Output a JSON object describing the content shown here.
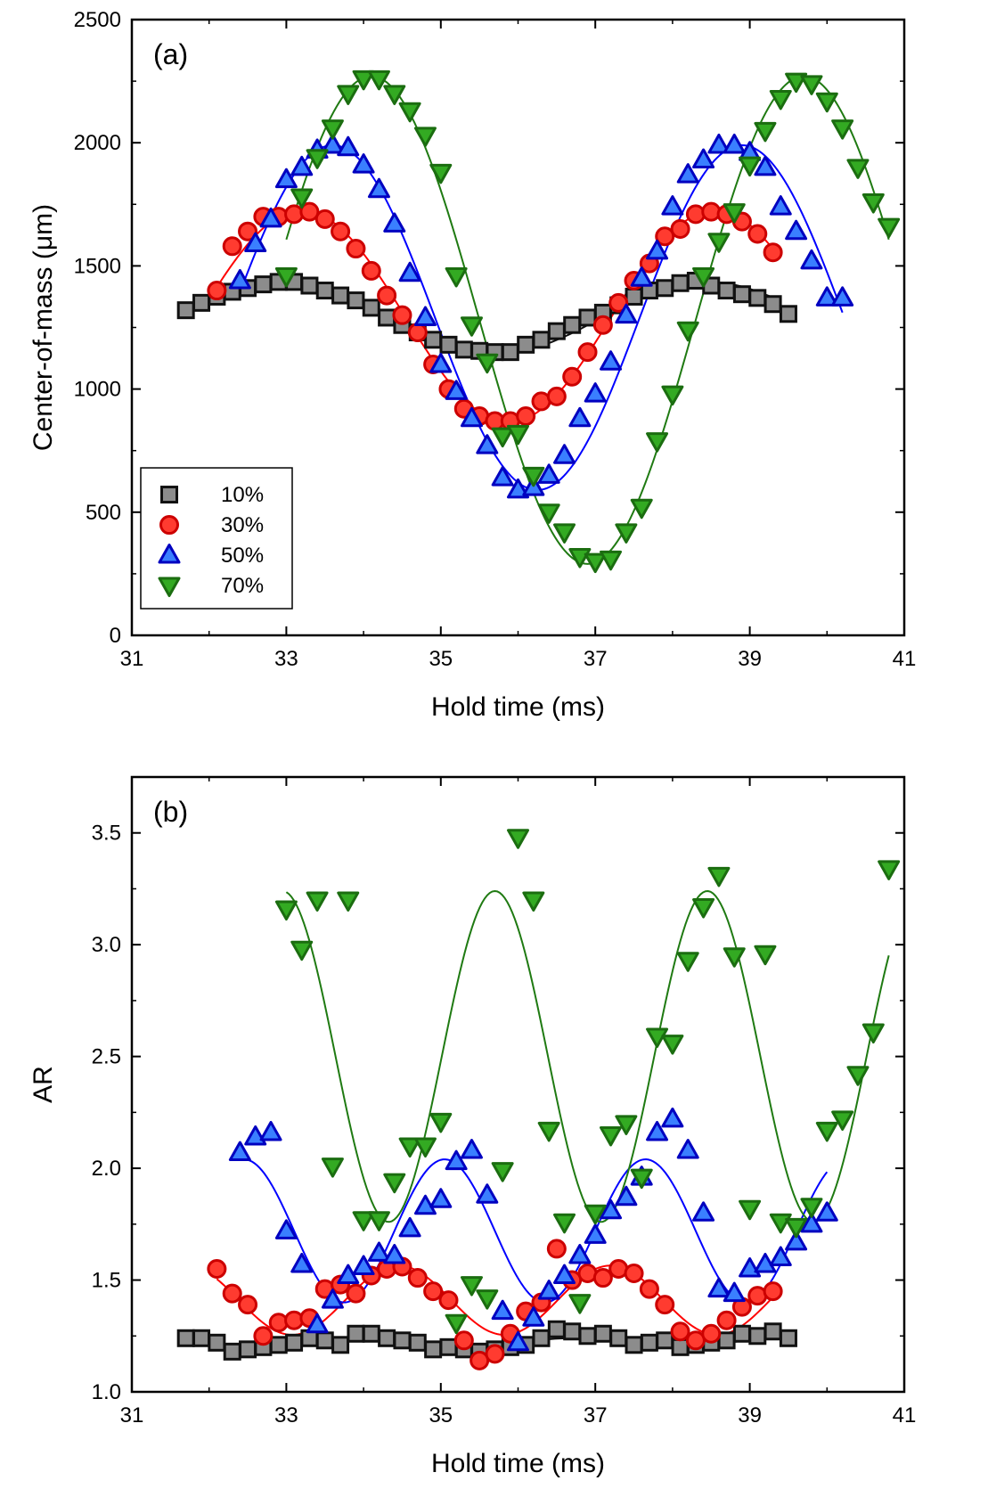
{
  "chart_data": [
    {
      "type": "scatter",
      "panel_label": "(a)",
      "xlabel": "Hold time (ms)",
      "ylabel": "Center-of-mass (μm)",
      "xlim": [
        31,
        41
      ],
      "ylim": [
        0,
        2500
      ],
      "xticks": [
        31,
        33,
        35,
        37,
        39,
        41
      ],
      "yticks": [
        0,
        500,
        1000,
        1500,
        2000,
        2500
      ],
      "legend_position": "bottom-left",
      "series": [
        {
          "name": "10%",
          "marker": "square",
          "color": "#8c8c8c",
          "edge": "#111111",
          "fit_color": "#111111",
          "x": [
            31.7,
            31.9,
            32.1,
            32.3,
            32.5,
            32.7,
            32.9,
            33.1,
            33.3,
            33.5,
            33.7,
            33.9,
            34.1,
            34.3,
            34.5,
            34.7,
            34.9,
            35.1,
            35.3,
            35.5,
            35.7,
            35.9,
            36.1,
            36.3,
            36.5,
            36.7,
            36.9,
            37.1,
            37.3,
            37.5,
            37.7,
            37.9,
            38.1,
            38.3,
            38.5,
            38.7,
            38.9,
            39.1,
            39.3,
            39.5
          ],
          "y": [
            1320,
            1350,
            1375,
            1395,
            1410,
            1425,
            1435,
            1435,
            1420,
            1400,
            1380,
            1360,
            1330,
            1290,
            1260,
            1230,
            1200,
            1180,
            1160,
            1155,
            1150,
            1150,
            1180,
            1200,
            1235,
            1260,
            1290,
            1310,
            1340,
            1375,
            1400,
            1410,
            1430,
            1440,
            1420,
            1400,
            1385,
            1370,
            1345,
            1305
          ],
          "fit": {
            "x0": 32.0,
            "x1": 39.3,
            "mean": 1290,
            "amp": 145,
            "period": 5.45,
            "phase_peak": 33.0
          }
        },
        {
          "name": "30%",
          "marker": "circle",
          "color": "#ff3b30",
          "edge": "#cc0000",
          "fit_color": "#ff0000",
          "x": [
            32.1,
            32.3,
            32.5,
            32.7,
            32.9,
            33.1,
            33.3,
            33.5,
            33.7,
            33.9,
            34.1,
            34.3,
            34.5,
            34.7,
            34.9,
            35.1,
            35.3,
            35.5,
            35.7,
            35.9,
            36.1,
            36.3,
            36.5,
            36.7,
            36.9,
            37.1,
            37.3,
            37.5,
            37.7,
            37.9,
            38.1,
            38.3,
            38.5,
            38.7,
            38.9,
            39.1,
            39.3
          ],
          "y": [
            1400,
            1580,
            1640,
            1700,
            1700,
            1710,
            1720,
            1690,
            1640,
            1570,
            1480,
            1380,
            1300,
            1230,
            1100,
            1000,
            920,
            890,
            870,
            870,
            890,
            950,
            970,
            1050,
            1150,
            1260,
            1350,
            1440,
            1510,
            1620,
            1650,
            1710,
            1720,
            1710,
            1680,
            1630,
            1555
          ],
          "fit": {
            "x0": 32.1,
            "x1": 39.3,
            "mean": 1295,
            "amp": 430,
            "period": 5.35,
            "phase_peak": 33.2
          }
        },
        {
          "name": "50%",
          "marker": "triangle-up",
          "color": "#3a7fff",
          "edge": "#0000c0",
          "fit_color": "#0000ff",
          "x": [
            32.4,
            32.6,
            32.8,
            33.0,
            33.2,
            33.4,
            33.6,
            33.8,
            34.0,
            34.2,
            34.4,
            34.6,
            34.8,
            35.0,
            35.2,
            35.4,
            35.6,
            35.8,
            36.0,
            36.2,
            36.4,
            36.6,
            36.8,
            37.0,
            37.2,
            37.4,
            37.6,
            37.8,
            38.0,
            38.2,
            38.4,
            38.6,
            38.8,
            39.0,
            39.2,
            39.4,
            39.6,
            39.8,
            40.0,
            40.2
          ],
          "y": [
            1440,
            1590,
            1690,
            1850,
            1900,
            1970,
            1990,
            1980,
            1910,
            1810,
            1670,
            1470,
            1290,
            1100,
            990,
            880,
            770,
            640,
            590,
            600,
            650,
            730,
            880,
            980,
            1110,
            1300,
            1450,
            1560,
            1740,
            1870,
            1930,
            1990,
            1990,
            1960,
            1900,
            1740,
            1640,
            1520,
            1370,
            1370
          ],
          "fit": {
            "x0": 32.4,
            "x1": 40.2,
            "mean": 1290,
            "amp": 700,
            "period": 5.3,
            "phase_peak": 33.6
          }
        },
        {
          "name": "70%",
          "marker": "triangle-down",
          "color": "#33aa22",
          "edge": "#1b6d10",
          "fit_color": "#1f7a12",
          "x": [
            33.0,
            33.2,
            33.4,
            33.6,
            33.8,
            34.0,
            34.2,
            34.4,
            34.6,
            34.8,
            35.0,
            35.2,
            35.4,
            35.6,
            35.8,
            36.0,
            36.2,
            36.4,
            36.6,
            36.8,
            37.0,
            37.2,
            37.4,
            37.6,
            37.8,
            38.0,
            38.2,
            38.4,
            38.6,
            38.8,
            39.0,
            39.2,
            39.4,
            39.6,
            39.8,
            40.0,
            40.2,
            40.4,
            40.6,
            40.8
          ],
          "y": [
            1460,
            1780,
            1940,
            2060,
            2200,
            2260,
            2260,
            2200,
            2130,
            2030,
            1880,
            1460,
            1260,
            1110,
            810,
            820,
            650,
            500,
            420,
            320,
            300,
            310,
            420,
            520,
            790,
            980,
            1240,
            1460,
            1600,
            1720,
            1910,
            2050,
            2180,
            2250,
            2240,
            2170,
            2060,
            1900,
            1760,
            1660
          ],
          "fit": {
            "x0": 33.0,
            "x1": 40.8,
            "mean": 1280,
            "amp": 990,
            "period": 5.6,
            "phase_peak": 34.1
          }
        }
      ]
    },
    {
      "type": "scatter",
      "panel_label": "(b)",
      "xlabel": "Hold time (ms)",
      "ylabel": "AR",
      "xlim": [
        31,
        41
      ],
      "ylim": [
        1.0,
        3.75
      ],
      "xticks": [
        31,
        33,
        35,
        37,
        39,
        41
      ],
      "yticks": [
        1.0,
        1.5,
        2.0,
        2.5,
        3.0,
        3.5
      ],
      "ytick_labels": [
        "1.0",
        "1.5",
        "2.0",
        "2.5",
        "3.0",
        "3.5"
      ],
      "series": [
        {
          "name": "10%",
          "marker": "square",
          "color": "#8c8c8c",
          "edge": "#111111",
          "fit_color": "#111111",
          "x": [
            31.7,
            31.9,
            32.1,
            32.3,
            32.5,
            32.7,
            32.9,
            33.1,
            33.3,
            33.5,
            33.7,
            33.9,
            34.1,
            34.3,
            34.5,
            34.7,
            34.9,
            35.1,
            35.3,
            35.5,
            35.7,
            35.9,
            36.1,
            36.3,
            36.5,
            36.7,
            36.9,
            37.1,
            37.3,
            37.5,
            37.7,
            37.9,
            38.1,
            38.3,
            38.5,
            38.7,
            38.9,
            39.1,
            39.3,
            39.5
          ],
          "y": [
            1.24,
            1.24,
            1.22,
            1.18,
            1.19,
            1.2,
            1.21,
            1.22,
            1.24,
            1.23,
            1.21,
            1.26,
            1.26,
            1.24,
            1.23,
            1.22,
            1.19,
            1.2,
            1.19,
            1.18,
            1.19,
            1.2,
            1.21,
            1.24,
            1.28,
            1.27,
            1.25,
            1.26,
            1.24,
            1.21,
            1.22,
            1.23,
            1.2,
            1.21,
            1.22,
            1.23,
            1.26,
            1.25,
            1.27,
            1.24
          ],
          "fit": {
            "x0": 31.7,
            "x1": 39.5,
            "mean": 1.22,
            "amp": 0.02,
            "period": 2.7,
            "phase_peak": 34.0
          }
        },
        {
          "name": "30%",
          "marker": "circle",
          "color": "#ff3b30",
          "edge": "#cc0000",
          "fit_color": "#ff0000",
          "x": [
            32.1,
            32.3,
            32.5,
            32.7,
            32.9,
            33.1,
            33.3,
            33.5,
            33.7,
            33.9,
            34.1,
            34.3,
            34.5,
            34.7,
            34.9,
            35.1,
            35.3,
            35.5,
            35.7,
            35.9,
            36.1,
            36.3,
            36.5,
            36.7,
            36.9,
            37.1,
            37.3,
            37.5,
            37.7,
            37.9,
            38.1,
            38.3,
            38.5,
            38.7,
            38.9,
            39.1,
            39.3
          ],
          "y": [
            1.55,
            1.44,
            1.39,
            1.25,
            1.31,
            1.32,
            1.33,
            1.46,
            1.48,
            1.44,
            1.52,
            1.55,
            1.56,
            1.51,
            1.45,
            1.41,
            1.23,
            1.14,
            1.17,
            1.26,
            1.36,
            1.4,
            1.64,
            1.5,
            1.53,
            1.51,
            1.55,
            1.53,
            1.46,
            1.39,
            1.27,
            1.23,
            1.26,
            1.32,
            1.38,
            1.43,
            1.45
          ],
          "fit": {
            "x0": 32.1,
            "x1": 39.3,
            "mean": 1.41,
            "amp": 0.155,
            "period": 2.75,
            "phase_peak": 34.45
          }
        },
        {
          "name": "50%",
          "marker": "triangle-up",
          "color": "#3a7fff",
          "edge": "#0000c0",
          "fit_color": "#0000ff",
          "x": [
            32.4,
            32.6,
            32.8,
            33.0,
            33.2,
            33.4,
            33.6,
            33.8,
            34.0,
            34.2,
            34.4,
            34.6,
            34.8,
            35.0,
            35.2,
            35.4,
            35.6,
            35.8,
            36.0,
            36.2,
            36.4,
            36.6,
            36.8,
            37.0,
            37.2,
            37.4,
            37.6,
            37.8,
            38.0,
            38.2,
            38.4,
            38.6,
            38.8,
            39.0,
            39.2,
            39.4,
            39.6,
            39.8,
            40.0
          ],
          "y": [
            2.07,
            2.14,
            2.16,
            1.72,
            1.57,
            1.3,
            1.41,
            1.52,
            1.56,
            1.62,
            1.61,
            1.73,
            1.83,
            1.86,
            2.03,
            2.08,
            1.88,
            1.36,
            1.22,
            1.33,
            1.45,
            1.52,
            1.61,
            1.7,
            1.81,
            1.87,
            1.96,
            2.16,
            2.22,
            2.08,
            1.8,
            1.46,
            1.44,
            1.55,
            1.57,
            1.6,
            1.67,
            1.75,
            1.8
          ],
          "fit": {
            "x0": 32.4,
            "x1": 40.0,
            "mean": 1.72,
            "amp": 0.32,
            "period": 2.6,
            "phase_peak": 32.45
          }
        },
        {
          "name": "70%",
          "marker": "triangle-down",
          "color": "#33aa22",
          "edge": "#1b6d10",
          "fit_color": "#1f7a12",
          "x": [
            33.0,
            33.2,
            33.4,
            33.6,
            33.8,
            34.0,
            34.2,
            34.4,
            34.6,
            34.8,
            35.0,
            35.2,
            35.4,
            35.6,
            35.8,
            36.0,
            36.2,
            36.4,
            36.6,
            36.8,
            37.0,
            37.2,
            37.4,
            37.6,
            37.8,
            38.0,
            38.2,
            38.4,
            38.6,
            38.8,
            39.0,
            39.2,
            39.4,
            39.6,
            39.8,
            40.0,
            40.2,
            40.4,
            40.6,
            40.8
          ],
          "y": [
            3.16,
            2.98,
            3.2,
            2.01,
            3.2,
            1.77,
            1.77,
            1.94,
            2.1,
            2.1,
            2.21,
            1.31,
            1.48,
            1.42,
            1.99,
            3.48,
            3.2,
            2.17,
            1.76,
            1.4,
            1.8,
            2.15,
            2.2,
            1.96,
            2.59,
            2.56,
            2.93,
            3.17,
            3.31,
            2.95,
            1.82,
            2.96,
            1.76,
            1.74,
            1.83,
            2.17,
            2.22,
            2.42,
            2.61,
            3.34
          ],
          "fit": {
            "x0": 33.0,
            "x1": 40.8,
            "mean": 2.5,
            "amp": 0.74,
            "period": 2.75,
            "phase_peak": 32.95
          }
        }
      ]
    }
  ]
}
